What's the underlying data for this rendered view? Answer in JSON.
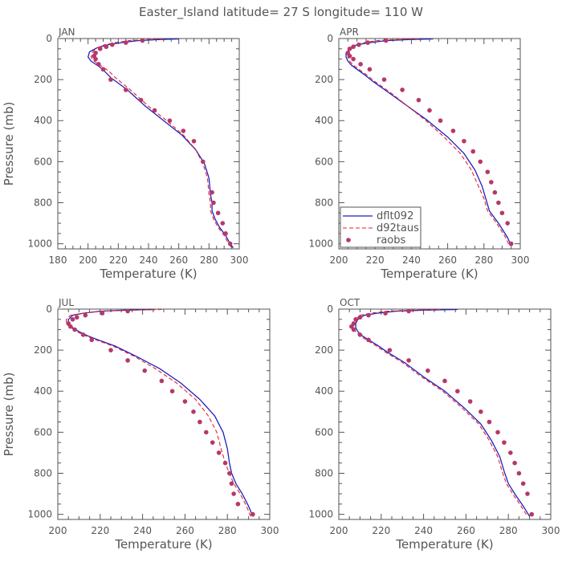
{
  "chart_data": {
    "type": "line",
    "title": "Easter_Island  latitude= 27 S longitude= 110 W",
    "xlabel": "Temperature (K)",
    "ylabel": "Pressure (mb)",
    "legend": {
      "placement": "bottom-left of APR panel",
      "entries": [
        "dflt092",
        "d92taus",
        "raobs"
      ]
    },
    "colors": {
      "dflt092": "#1f1fbf",
      "d92taus": "#e8202a",
      "raobs": "#b5386a",
      "text": "#555555",
      "axis": "#555555"
    },
    "ylim": [
      1025,
      0
    ],
    "yticks": [
      0,
      200,
      400,
      600,
      800,
      1000
    ],
    "panels": [
      {
        "label": "JAN",
        "xlim": [
          180,
          300
        ],
        "xticks": [
          180,
          200,
          220,
          240,
          260,
          280,
          300
        ],
        "series": [
          {
            "name": "dflt092",
            "style": "solid",
            "x": [
              260,
              246,
              233,
              222,
              213,
              206,
              201,
              200,
              202,
              205,
              208,
              211,
              215,
              226,
              238,
              250,
              262,
              271,
              277,
              280,
              281,
              282,
              282,
              284,
              287,
              291,
              294,
              296
            ],
            "y": [
              2,
              5,
              10,
              20,
              30,
              45,
              65,
              90,
              110,
              125,
              140,
              160,
              190,
              250,
              330,
              400,
              470,
              540,
              610,
              680,
              760,
              800,
              840,
              880,
              920,
              960,
              1000,
              1020
            ]
          },
          {
            "name": "d92taus",
            "style": "dashed",
            "x": [
              250,
              238,
              227,
              218,
              211,
              206,
              203,
              202,
              204,
              207,
              210,
              214,
              218,
              228,
              240,
              252,
              263,
              271,
              276,
              279,
              280,
              281,
              281,
              283,
              286,
              290,
              293,
              295
            ],
            "y": [
              2,
              5,
              10,
              20,
              30,
              45,
              65,
              90,
              110,
              125,
              140,
              160,
              190,
              250,
              330,
              400,
              470,
              540,
              610,
              680,
              760,
              800,
              840,
              880,
              920,
              960,
              1000,
              1020
            ]
          },
          {
            "name": "raobs",
            "style": "dots",
            "x": [
              236,
              225,
              216,
              212,
              208,
              205,
              204,
              205,
              207,
              210,
              215,
              225,
              235,
              244,
              254,
              263,
              270,
              276,
              282,
              283,
              286,
              289,
              291,
              294
            ],
            "y": [
              10,
              20,
              30,
              40,
              50,
              70,
              85,
              100,
              125,
              150,
              200,
              250,
              300,
              350,
              400,
              450,
              500,
              600,
              750,
              800,
              850,
              900,
              950,
              1000
            ]
          }
        ]
      },
      {
        "label": "APR",
        "xlim": [
          200,
          300
        ],
        "xticks": [
          200,
          220,
          240,
          260,
          280,
          300
        ],
        "series": [
          {
            "name": "dflt092",
            "style": "solid",
            "x": [
              252,
              238,
              226,
              217,
              210,
              206,
              204,
              204,
              205,
              207,
              210,
              214,
              219,
              227,
              238,
              249,
              260,
              269,
              275,
              279,
              281,
              283,
              288,
              293,
              295
            ],
            "y": [
              2,
              5,
              10,
              20,
              30,
              50,
              70,
              90,
              110,
              130,
              150,
              175,
              210,
              260,
              330,
              400,
              480,
              560,
              640,
              720,
              780,
              840,
              900,
              970,
              1010
            ]
          },
          {
            "name": "d92taus",
            "style": "dashed",
            "x": [
              244,
              231,
              221,
              214,
              209,
              206,
              205,
              205,
              206,
              208,
              211,
              215,
              220,
              228,
              238,
              248,
              258,
              267,
              273,
              277,
              280,
              282,
              287,
              292,
              294
            ],
            "y": [
              2,
              5,
              10,
              20,
              30,
              50,
              70,
              90,
              110,
              130,
              150,
              175,
              210,
              260,
              330,
              400,
              480,
              560,
              640,
              720,
              780,
              840,
              900,
              970,
              1010
            ]
          },
          {
            "name": "raobs",
            "style": "dots",
            "x": [
              226,
              216,
              211,
              208,
              206,
              205,
              206,
              208,
              212,
              217,
              225,
              235,
              244,
              250,
              256,
              263,
              269,
              274,
              278,
              282,
              284,
              286,
              288,
              290,
              293,
              295
            ],
            "y": [
              10,
              20,
              30,
              40,
              50,
              70,
              85,
              100,
              125,
              150,
              200,
              250,
              300,
              350,
              400,
              450,
              500,
              550,
              600,
              650,
              700,
              750,
              800,
              850,
              900,
              1000
            ]
          }
        ]
      },
      {
        "label": "JUL",
        "xlim": [
          200,
          300
        ],
        "xticks": [
          200,
          220,
          240,
          260,
          280,
          300
        ],
        "series": [
          {
            "name": "dflt092",
            "style": "solid",
            "x": [
              246,
              232,
              220,
              212,
              207,
              205,
              205,
              207,
              210,
              214,
              219,
              227,
              237,
              248,
              258,
              267,
              274,
              278,
              280,
              281,
              282,
              284,
              287,
              290,
              292
            ],
            "y": [
              2,
              5,
              10,
              20,
              30,
              50,
              70,
              90,
              110,
              130,
              150,
              180,
              230,
              290,
              360,
              440,
              520,
              600,
              680,
              750,
              800,
              850,
              900,
              960,
              1010
            ]
          },
          {
            "name": "d92taus",
            "style": "dashed",
            "x": [
              249,
              234,
              221,
              212,
              206,
              204,
              204,
              206,
              209,
              213,
              218,
              226,
              236,
              246,
              256,
              265,
              271,
              275,
              277,
              279,
              281,
              283,
              286,
              289,
              291
            ],
            "y": [
              2,
              5,
              10,
              20,
              30,
              50,
              70,
              90,
              110,
              130,
              150,
              180,
              230,
              290,
              360,
              440,
              520,
              600,
              680,
              750,
              800,
              850,
              900,
              960,
              1010
            ]
          },
          {
            "name": "raobs",
            "style": "dots",
            "x": [
              233,
              221,
              213,
              209,
              207,
              205,
              206,
              208,
              212,
              216,
              225,
              233,
              241,
              249,
              254,
              260,
              264,
              267,
              270,
              273,
              276,
              279,
              281,
              282,
              283,
              285,
              292
            ],
            "y": [
              10,
              20,
              30,
              40,
              50,
              70,
              85,
              100,
              125,
              150,
              200,
              250,
              300,
              350,
              400,
              450,
              500,
              550,
              600,
              650,
              700,
              750,
              800,
              850,
              900,
              950,
              1000
            ]
          }
        ]
      },
      {
        "label": "OCT",
        "xlim": [
          200,
          300
        ],
        "xticks": [
          200,
          220,
          240,
          260,
          280,
          300
        ],
        "series": [
          {
            "name": "dflt092",
            "style": "solid",
            "x": [
              256,
              240,
              227,
              218,
              212,
              209,
              208,
              208,
              209,
              211,
              214,
              218,
              223,
              231,
              240,
              250,
              259,
              267,
              272,
              276,
              278,
              280,
              283,
              287,
              290
            ],
            "y": [
              2,
              5,
              10,
              20,
              30,
              50,
              70,
              90,
              110,
              130,
              150,
              175,
              210,
              260,
              330,
              400,
              480,
              560,
              640,
              720,
              790,
              850,
              900,
              960,
              1010
            ]
          },
          {
            "name": "d92taus",
            "style": "dashed",
            "x": [
              248,
              234,
              223,
              215,
              210,
              208,
              207,
              207,
              208,
              210,
              213,
              217,
              222,
              230,
              239,
              249,
              258,
              266,
              271,
              275,
              277,
              279,
              282,
              286,
              289
            ],
            "y": [
              2,
              5,
              10,
              20,
              30,
              50,
              70,
              90,
              110,
              130,
              150,
              175,
              210,
              260,
              330,
              400,
              480,
              560,
              640,
              720,
              790,
              850,
              900,
              960,
              1010
            ]
          },
          {
            "name": "raobs",
            "style": "dots",
            "x": [
              233,
              222,
              214,
              210,
              208,
              207,
              206,
              207,
              210,
              214,
              224,
              233,
              242,
              250,
              256,
              262,
              267,
              271,
              275,
              278,
              281,
              283,
              285,
              287,
              289,
              291
            ],
            "y": [
              10,
              20,
              30,
              40,
              50,
              70,
              85,
              100,
              125,
              150,
              200,
              250,
              300,
              350,
              400,
              450,
              500,
              550,
              600,
              650,
              700,
              750,
              800,
              850,
              900,
              1000
            ]
          }
        ]
      }
    ]
  }
}
